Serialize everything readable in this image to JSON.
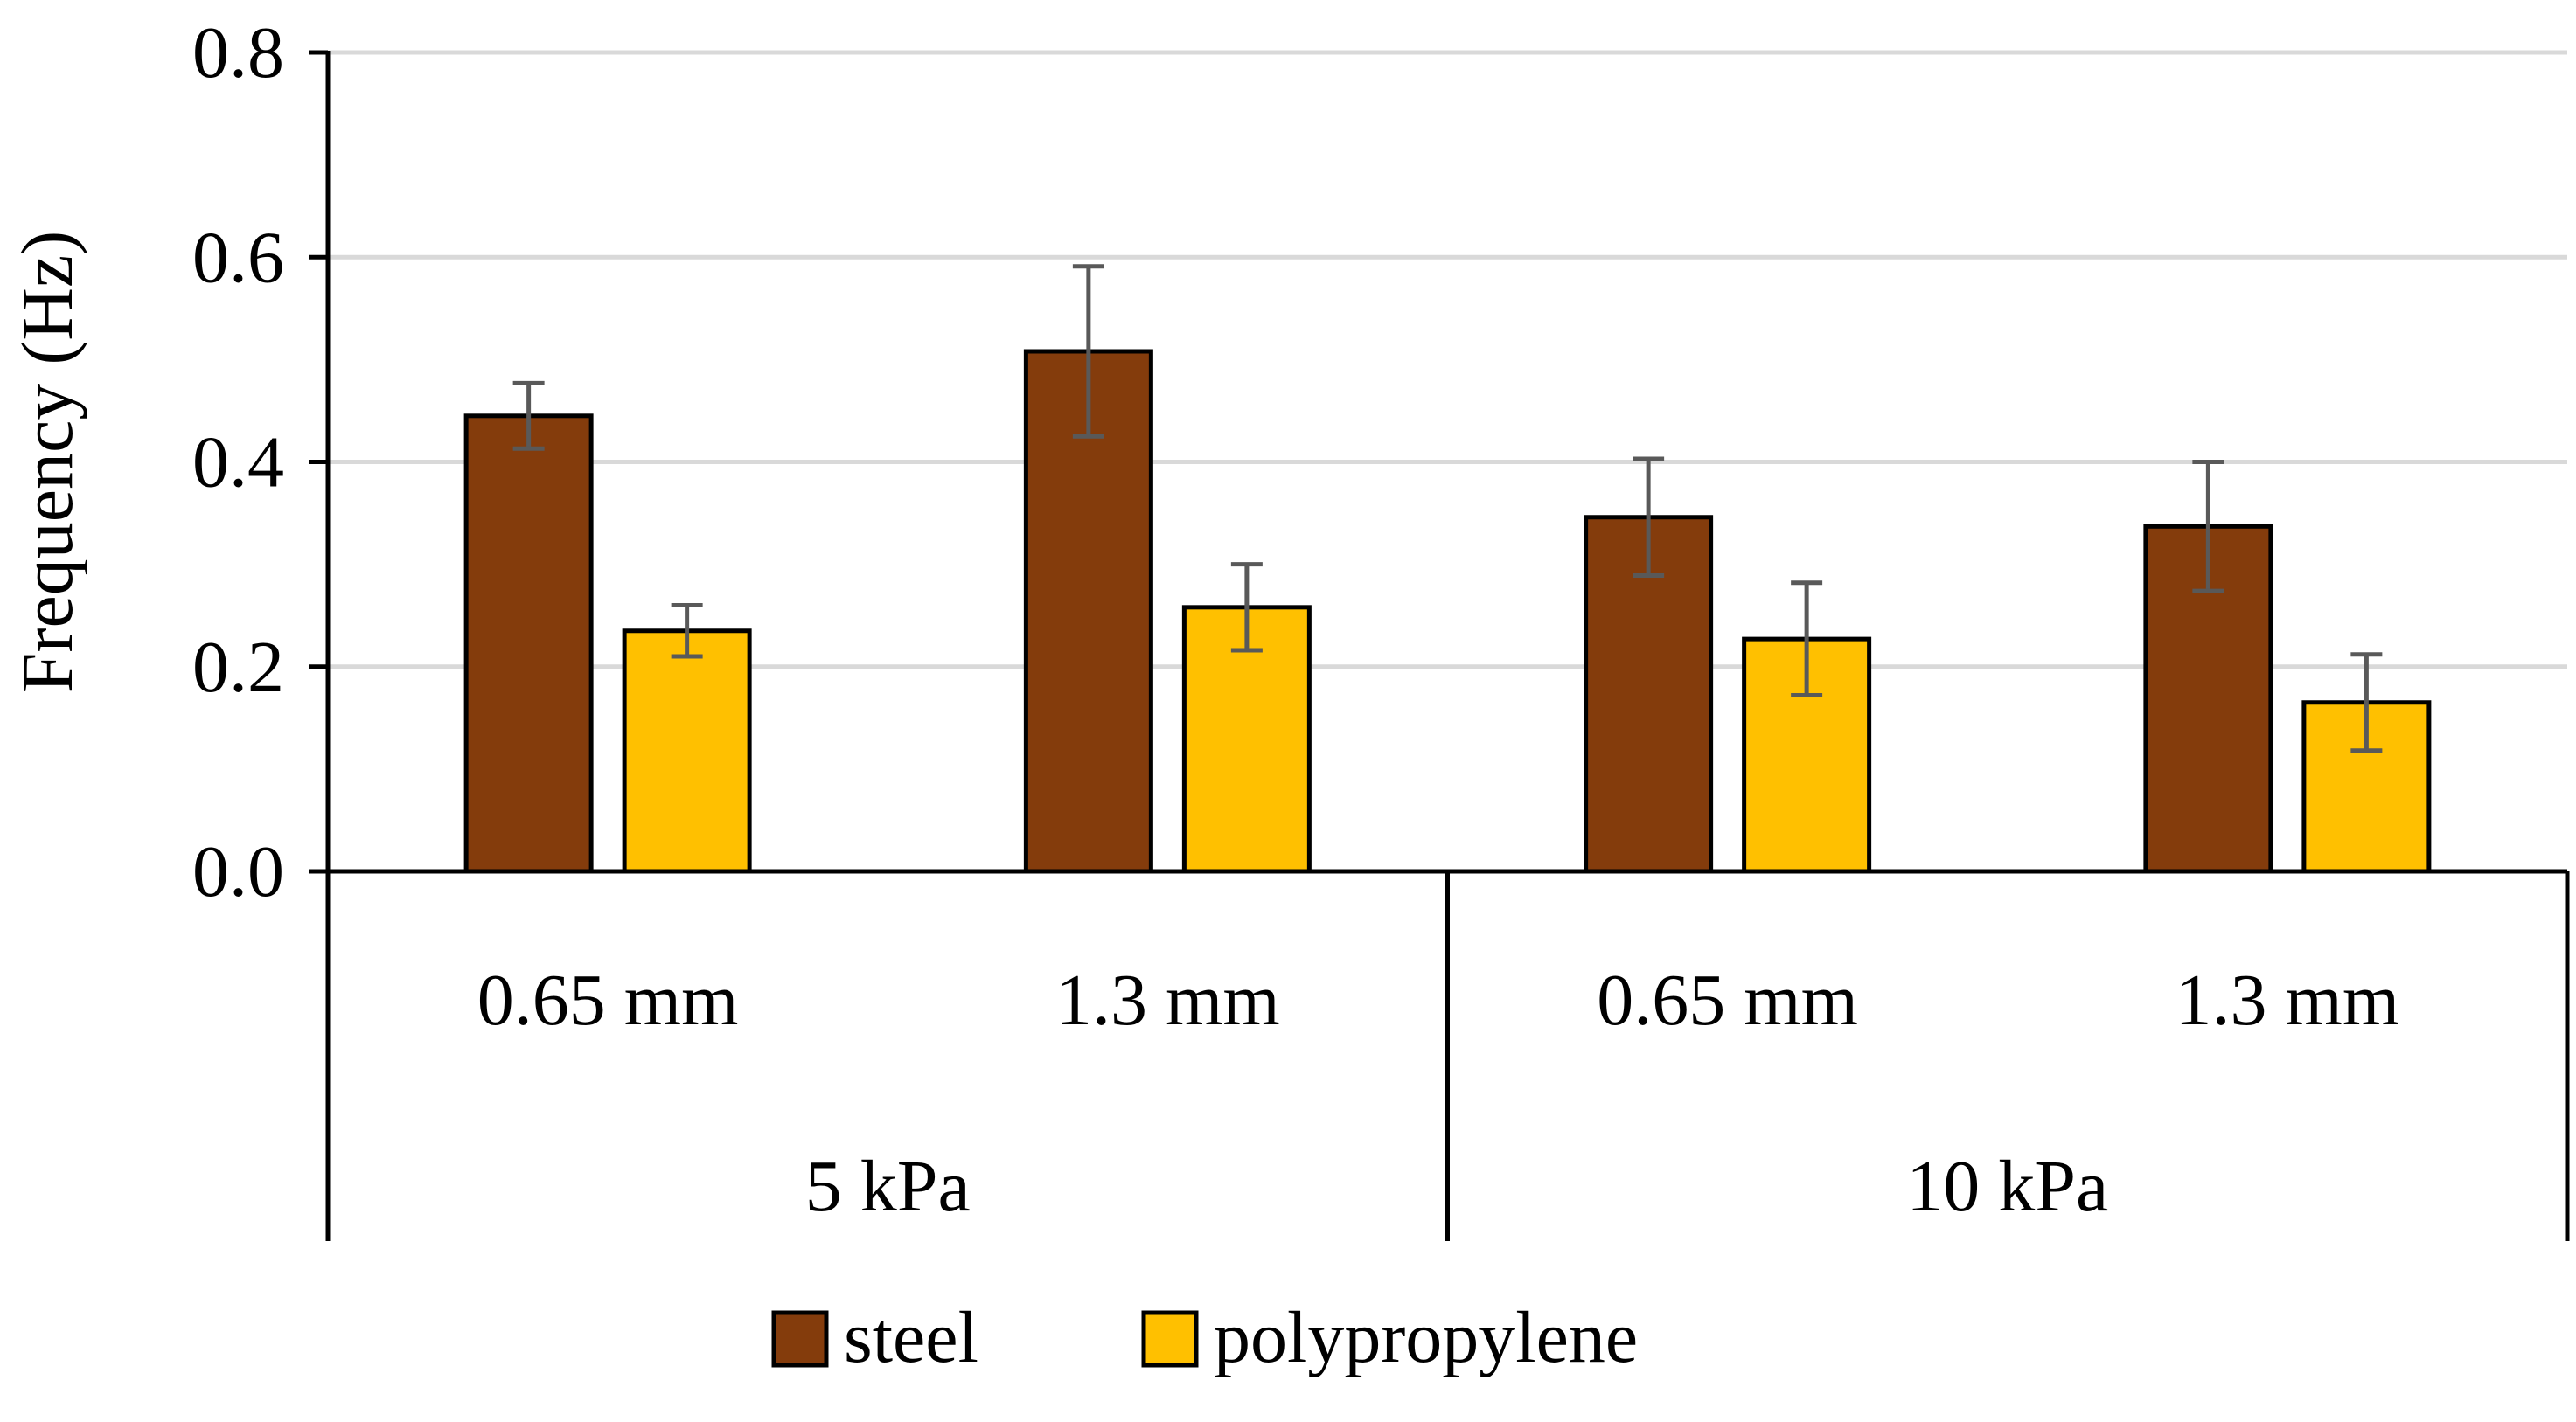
{
  "chart_data": {
    "type": "bar",
    "title": "",
    "xlabel": "",
    "ylabel": "Frequency (Hz)",
    "ylim": [
      0,
      0.8
    ],
    "yticks": [
      "0.0",
      "0.2",
      "0.4",
      "0.6",
      "0.8"
    ],
    "grid": true,
    "legend_position": "bottom",
    "groups": [
      {
        "label": "5 kPa",
        "categories": [
          "0.65 mm",
          "1.3 mm"
        ]
      },
      {
        "label": "10 kPa",
        "categories": [
          "0.65 mm",
          "1.3 mm"
        ]
      }
    ],
    "categories": [
      "0.65 mm",
      "1.3 mm",
      "0.65 mm",
      "1.3 mm"
    ],
    "series": [
      {
        "name": "steel",
        "color": "#843C0C",
        "values": [
          0.445,
          0.508,
          0.346,
          0.337
        ],
        "error": [
          0.032,
          0.083,
          0.057,
          0.063
        ]
      },
      {
        "name": "polypropylene",
        "color": "#FFC000",
        "values": [
          0.235,
          0.258,
          0.227,
          0.165
        ],
        "error": [
          0.025,
          0.042,
          0.055,
          0.047
        ]
      }
    ]
  }
}
